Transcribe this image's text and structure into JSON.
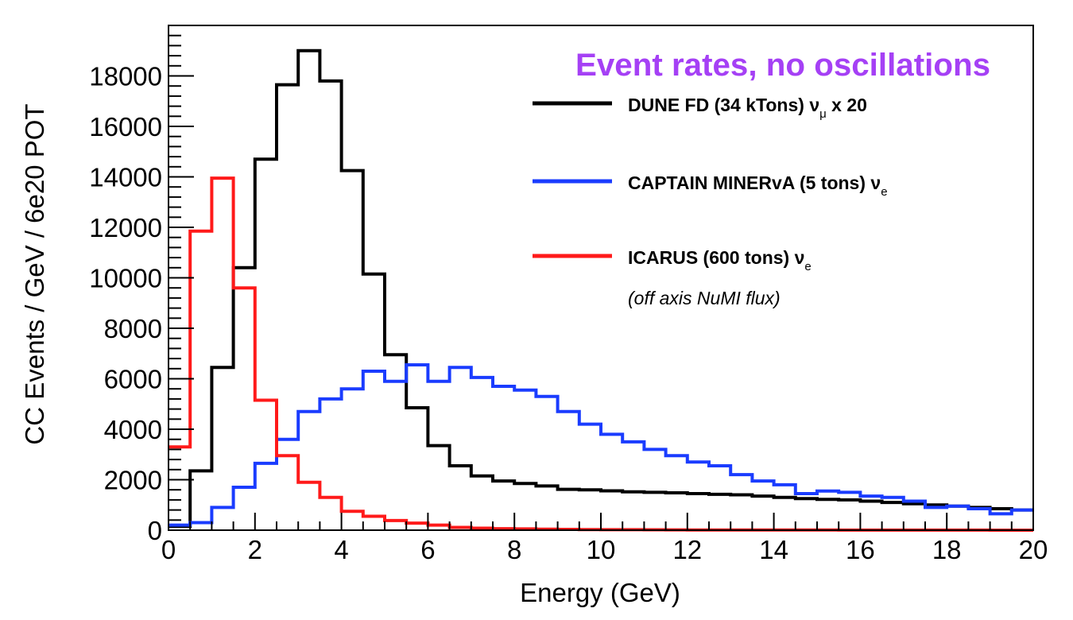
{
  "chart_data": {
    "type": "step-histogram",
    "title": "Event rates, no oscillations",
    "xlabel": "Energy (GeV)",
    "ylabel": "CC Events / GeV / 6e20 POT",
    "xlim": [
      0,
      20
    ],
    "ylim": [
      0,
      20000
    ],
    "bin_width": 0.5,
    "x_ticks": [
      0,
      2,
      4,
      6,
      8,
      10,
      12,
      14,
      16,
      18,
      20
    ],
    "y_ticks": [
      0,
      2000,
      4000,
      6000,
      8000,
      10000,
      12000,
      14000,
      16000,
      18000
    ],
    "series": [
      {
        "name": "DUNE FD (34 kTons) ν_μ x 20",
        "color": "#000000",
        "values": [
          150,
          2350,
          6450,
          10400,
          14700,
          17650,
          19000,
          17800,
          14250,
          10150,
          6950,
          4850,
          3350,
          2550,
          2150,
          1950,
          1850,
          1750,
          1620,
          1600,
          1560,
          1520,
          1500,
          1480,
          1450,
          1420,
          1400,
          1350,
          1300,
          1250,
          1220,
          1200,
          1150,
          1100,
          1050,
          1000,
          950,
          900,
          850,
          800
        ]
      },
      {
        "name": "CAPTAIN MINERvA (5 tons) ν_e",
        "color": "#1a3cff",
        "values": [
          200,
          300,
          900,
          1700,
          2650,
          3600,
          4700,
          5200,
          5600,
          6300,
          5900,
          6550,
          5900,
          6450,
          6050,
          5700,
          5550,
          5300,
          4700,
          4200,
          3800,
          3500,
          3200,
          2950,
          2700,
          2550,
          2200,
          1950,
          1800,
          1450,
          1550,
          1500,
          1350,
          1300,
          1150,
          900,
          950,
          850,
          650,
          800
        ]
      },
      {
        "name": "ICARUS (600 tons) ν_e",
        "color": "#ff1a1a",
        "values": [
          3300,
          11850,
          13950,
          9600,
          5150,
          2950,
          1900,
          1300,
          750,
          550,
          380,
          280,
          200,
          110,
          80,
          60,
          50,
          40,
          30,
          25,
          20,
          18,
          15,
          12,
          10,
          9,
          8,
          7,
          6,
          5,
          5,
          4,
          4,
          3,
          3,
          2,
          2,
          2,
          1,
          1
        ]
      }
    ],
    "legend": {
      "placement": "top-right",
      "entries": [
        {
          "main": "DUNE FD (34 kTons)  ν",
          "sub": "μ",
          "tail": " x 20"
        },
        {
          "main": "CAPTAIN MINERvA (5 tons)  ν",
          "sub": "e",
          "tail": ""
        },
        {
          "main": "ICARUS (600 tons)  ν",
          "sub": "e",
          "tail": ""
        }
      ],
      "note": "(off axis NuMI flux)"
    }
  }
}
